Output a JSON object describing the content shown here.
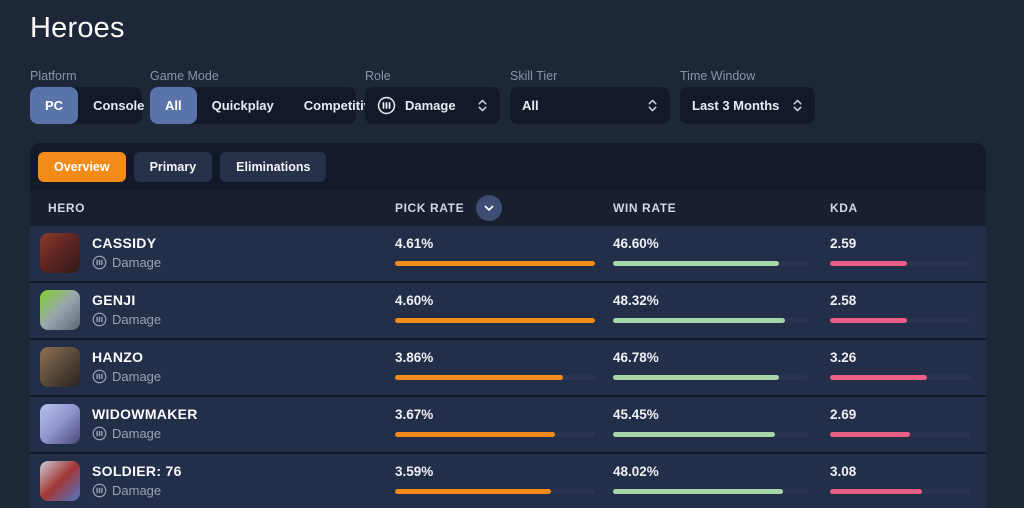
{
  "page": {
    "title": "Heroes"
  },
  "filters": {
    "platform": {
      "label": "Platform",
      "options": [
        "PC",
        "Console"
      ],
      "selected": "PC"
    },
    "game_mode": {
      "label": "Game Mode",
      "options": [
        "All",
        "Quickplay",
        "Competitive"
      ],
      "selected": "All"
    },
    "role": {
      "label": "Role",
      "value": "Damage"
    },
    "skill_tier": {
      "label": "Skill Tier",
      "value": "All"
    },
    "time_window": {
      "label": "Time Window",
      "value": "Last 3 Months"
    }
  },
  "tabs": [
    {
      "label": "Overview",
      "active": true
    },
    {
      "label": "Primary",
      "active": false
    },
    {
      "label": "Eliminations",
      "active": false
    }
  ],
  "table": {
    "columns": [
      "HERO",
      "PICK RATE",
      "WIN RATE",
      "KDA"
    ],
    "sorted_by": "PICK RATE"
  },
  "heroes": [
    {
      "name": "CASSIDY",
      "role": "Damage",
      "pick_rate": "4.61%",
      "win_rate": "46.60%",
      "kda": "2.59",
      "pick_fill": 100,
      "win_fill": 85,
      "kda_fill": 55,
      "avatar_colors": [
        "#8a3a2e",
        "#5c2420",
        "#2e1a18"
      ]
    },
    {
      "name": "GENJI",
      "role": "Damage",
      "pick_rate": "4.60%",
      "win_rate": "48.32%",
      "kda": "2.58",
      "pick_fill": 100,
      "win_fill": 88,
      "kda_fill": 55,
      "avatar_colors": [
        "#7fd02c",
        "#9aa6ae",
        "#5d676f"
      ]
    },
    {
      "name": "HANZO",
      "role": "Damage",
      "pick_rate": "3.86%",
      "win_rate": "46.78%",
      "kda": "3.26",
      "pick_fill": 84,
      "win_fill": 85,
      "kda_fill": 69,
      "avatar_colors": [
        "#8d7254",
        "#5a4a39",
        "#26221f"
      ]
    },
    {
      "name": "WIDOWMAKER",
      "role": "Damage",
      "pick_rate": "3.67%",
      "win_rate": "45.45%",
      "kda": "2.69",
      "pick_fill": 80,
      "win_fill": 83,
      "kda_fill": 57,
      "avatar_colors": [
        "#b7c3ea",
        "#8f93cf",
        "#4a4a78"
      ]
    },
    {
      "name": "SOLDIER: 76",
      "role": "Damage",
      "pick_rate": "3.59%",
      "win_rate": "48.02%",
      "kda": "3.08",
      "pick_fill": 78,
      "win_fill": 87,
      "kda_fill": 66,
      "avatar_colors": [
        "#c9ced6",
        "#a33636",
        "#4f79c9"
      ]
    }
  ],
  "colors": {
    "accent_orange": "#f28b1a",
    "bar_green": "#a6d7a8",
    "bar_pink": "#eb5e86",
    "selected_blue": "#5a73a8",
    "page_background": "#1e2737",
    "row_background": "#232e48"
  }
}
